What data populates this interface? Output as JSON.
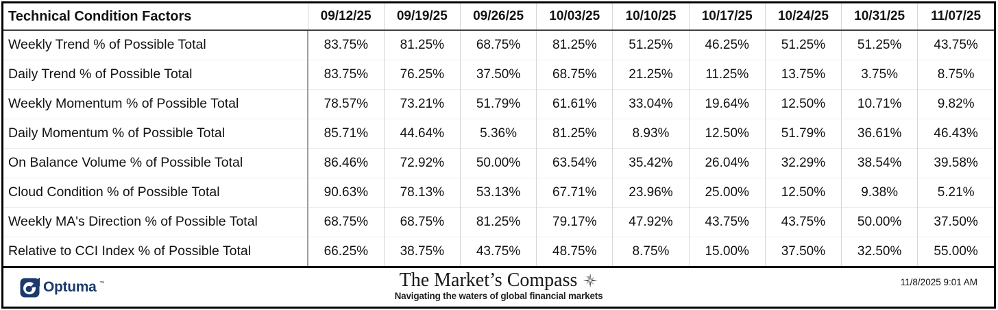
{
  "chart_data": {
    "type": "table",
    "title": "Technical Condition Factors",
    "columns": [
      "09/12/25",
      "09/19/25",
      "09/26/25",
      "10/03/25",
      "10/10/25",
      "10/17/25",
      "10/24/25",
      "10/31/25",
      "11/07/25"
    ],
    "rows": [
      {
        "label": "Weekly Trend % of Possible Total",
        "values": [
          "83.75%",
          "81.25%",
          "68.75%",
          "81.25%",
          "51.25%",
          "46.25%",
          "51.25%",
          "51.25%",
          "43.75%"
        ]
      },
      {
        "label": "Daily Trend % of Possible Total",
        "values": [
          "83.75%",
          "76.25%",
          "37.50%",
          "68.75%",
          "21.25%",
          "11.25%",
          "13.75%",
          "3.75%",
          "8.75%"
        ]
      },
      {
        "label": "Weekly Momentum % of Possible Total",
        "values": [
          "78.57%",
          "73.21%",
          "51.79%",
          "61.61%",
          "33.04%",
          "19.64%",
          "12.50%",
          "10.71%",
          "9.82%"
        ]
      },
      {
        "label": "Daily Momentum % of Possible Total",
        "values": [
          "85.71%",
          "44.64%",
          "5.36%",
          "81.25%",
          "8.93%",
          "12.50%",
          "51.79%",
          "36.61%",
          "46.43%"
        ]
      },
      {
        "label": "On Balance Volume % of Possible Total",
        "values": [
          "86.46%",
          "72.92%",
          "50.00%",
          "63.54%",
          "35.42%",
          "26.04%",
          "32.29%",
          "38.54%",
          "39.58%"
        ]
      },
      {
        "label": "Cloud Condition % of Possible Total",
        "values": [
          "90.63%",
          "78.13%",
          "53.13%",
          "67.71%",
          "23.96%",
          "25.00%",
          "12.50%",
          "9.38%",
          "5.21%"
        ]
      },
      {
        "label": "Weekly MA's Direction % of Possible Total",
        "values": [
          "68.75%",
          "68.75%",
          "81.25%",
          "79.17%",
          "47.92%",
          "43.75%",
          "43.75%",
          "50.00%",
          "37.50%"
        ]
      },
      {
        "label": "Relative to CCI Index % of Possible Total",
        "values": [
          "66.25%",
          "38.75%",
          "43.75%",
          "48.75%",
          "8.75%",
          "15.00%",
          "37.50%",
          "32.50%",
          "55.00%"
        ]
      }
    ]
  },
  "footer": {
    "optuma_label": "Optuma",
    "optuma_tm": "™",
    "brand_title": "The Market’s Compass",
    "brand_tagline": "Navigating the waters of global financial markets",
    "timestamp": "11/8/2025 9:01 AM"
  },
  "colors": {
    "optuma_navy": "#1c3a6a",
    "outer_border": "#000000",
    "grid_light": "#d6d6d6",
    "header_rule": "#3f3f3f"
  }
}
